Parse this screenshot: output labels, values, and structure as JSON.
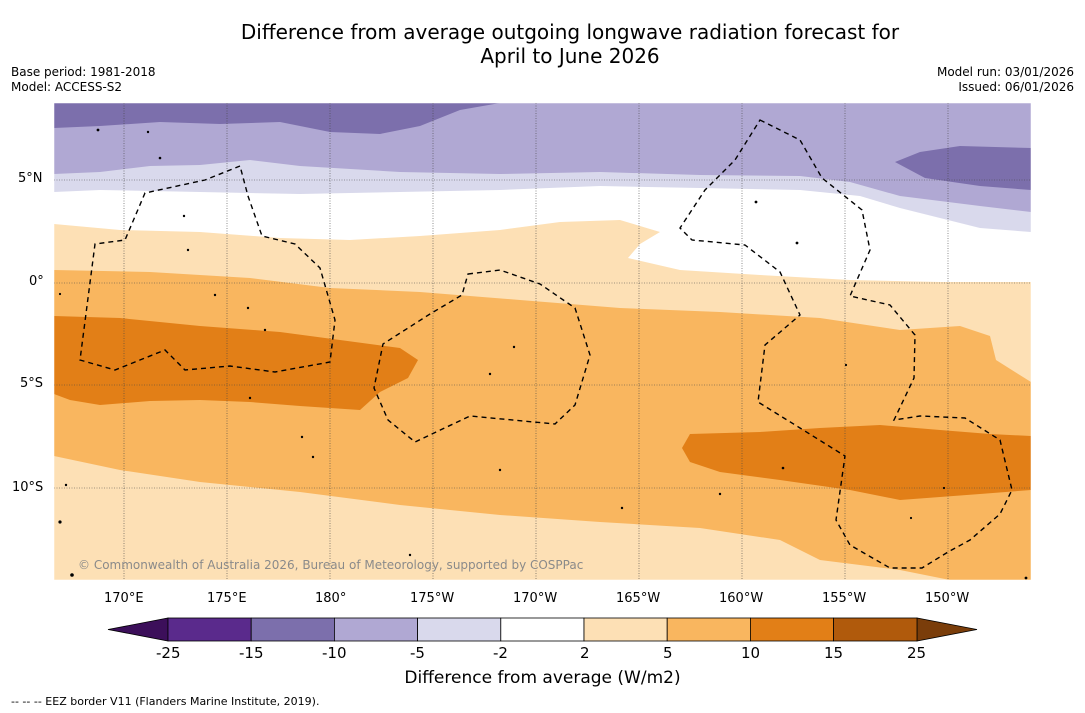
{
  "title": {
    "line1": "Difference from average outgoing longwave radiation forecast for",
    "line2": "April to June 2026"
  },
  "meta": {
    "base_period": "Base period: 1981-2018",
    "model": "Model: ACCESS-S2",
    "model_run": "Model run: 03/01/2026",
    "issued": "Issued: 06/01/2026"
  },
  "map": {
    "lat_labels": [
      "5°N",
      "0°",
      "5°S",
      "10°S"
    ],
    "lon_labels": [
      "170°E",
      "175°E",
      "180°",
      "175°W",
      "170°W",
      "165°W",
      "160°W",
      "155°W",
      "150°W"
    ],
    "copyright": "© Commonwealth of Australia 2026, Bureau of Meteorology, supported by COSPPac"
  },
  "colorbar": {
    "tick_labels": [
      "-25",
      "-15",
      "-10",
      "-5",
      "-2",
      "2",
      "5",
      "10",
      "15",
      "25"
    ],
    "label": "Difference from average (W/m2)",
    "colors": [
      "#5a2a8c",
      "#7c6fac",
      "#b0a8d3",
      "#d9d9ec",
      "#ffffff",
      "#fde0b5",
      "#f9b65f",
      "#e27f17",
      "#b05a0c"
    ],
    "extend_low_color": "#3c0f5a",
    "extend_high_color": "#7a3d0a"
  },
  "footnote": "--  --  -- EEZ border V11 (Flanders Marine Institute, 2019)."
}
